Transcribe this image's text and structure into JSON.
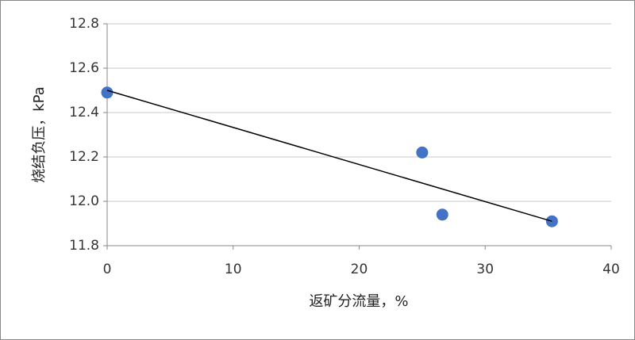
{
  "chart_data": {
    "type": "scatter",
    "x_label": "返矿分流量，%",
    "y_label": "烧结负压，kPa",
    "series": [
      {
        "color": "#4472c4",
        "x": [
          0,
          25,
          26.6,
          35.3
        ],
        "values": [
          12.49,
          12.22,
          11.94,
          11.91
        ]
      }
    ],
    "trendline": {
      "color": "#000000",
      "x": [
        0,
        35.3
      ],
      "values": [
        12.5,
        11.91
      ]
    },
    "xlim": [
      0,
      40
    ],
    "xticks": [
      0,
      10,
      20,
      30,
      40
    ],
    "ylim": [
      11.8,
      12.8
    ],
    "yticks": [
      11.8,
      {
        "value": 12.0,
        "label": "12.0"
      },
      12.2,
      12.4,
      12.6,
      12.8
    ],
    "grid": true
  }
}
